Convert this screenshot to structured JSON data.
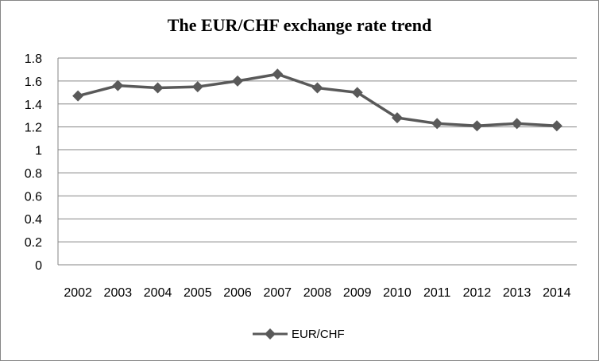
{
  "chart_data": {
    "type": "line",
    "title": "The EUR/CHF exchange rate trend",
    "xlabel": "",
    "ylabel": "",
    "categories": [
      "2002",
      "2003",
      "2004",
      "2005",
      "2006",
      "2007",
      "2008",
      "2009",
      "2010",
      "2011",
      "2012",
      "2013",
      "2014"
    ],
    "series": [
      {
        "name": "EUR/CHF",
        "values": [
          1.47,
          1.56,
          1.54,
          1.55,
          1.6,
          1.66,
          1.54,
          1.5,
          1.28,
          1.23,
          1.21,
          1.23,
          1.21
        ],
        "color": "#595959",
        "marker": "diamond"
      }
    ],
    "ylim": [
      0,
      1.8
    ],
    "yticks": [
      "0",
      "0.2",
      "0.4",
      "0.6",
      "0.8",
      "1",
      "1.2",
      "1.4",
      "1.6",
      "1.8"
    ],
    "grid": true,
    "legend": "bottom"
  }
}
